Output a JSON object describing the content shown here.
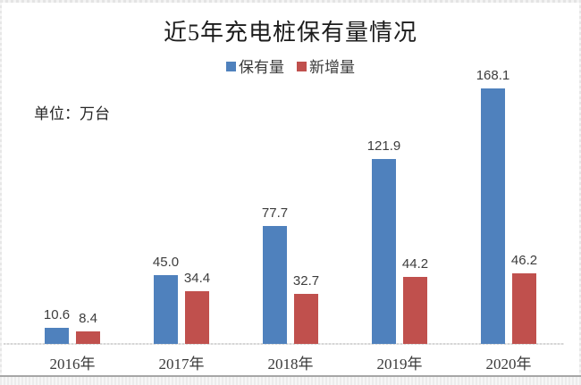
{
  "title": "近5年充电桩保有量情况",
  "unit_label": "单位：万台",
  "colors": {
    "series_stock": "#4f81bd",
    "series_new": "#c0504d",
    "axis_line": "#d6d6d6",
    "text": "#3a3a3a",
    "bottom_rule": "#a6a6a6"
  },
  "legend": [
    {
      "label": "保有量",
      "color": "#4f81bd"
    },
    {
      "label": "新增量",
      "color": "#c0504d"
    }
  ],
  "chart_data": {
    "type": "bar",
    "title": "近5年充电桩保有量情况",
    "unit": "万台",
    "categories": [
      "2016年",
      "2017年",
      "2018年",
      "2019年",
      "2020年"
    ],
    "series": [
      {
        "name": "保有量",
        "color": "#4f81bd",
        "values": [
          10.6,
          45.0,
          77.7,
          121.9,
          168.1
        ],
        "labels": [
          "10.6",
          "45.0",
          "77.7",
          "121.9",
          "168.1"
        ]
      },
      {
        "name": "新增量",
        "color": "#c0504d",
        "values": [
          8.4,
          34.4,
          32.7,
          44.2,
          46.2
        ],
        "labels": [
          "8.4",
          "34.4",
          "32.7",
          "44.2",
          "46.2"
        ]
      }
    ],
    "ylim": [
      0,
      175
    ],
    "xlabel": "",
    "ylabel": "万台",
    "grid": false,
    "legend_position": "top-center",
    "data_labels": "outside-end"
  }
}
